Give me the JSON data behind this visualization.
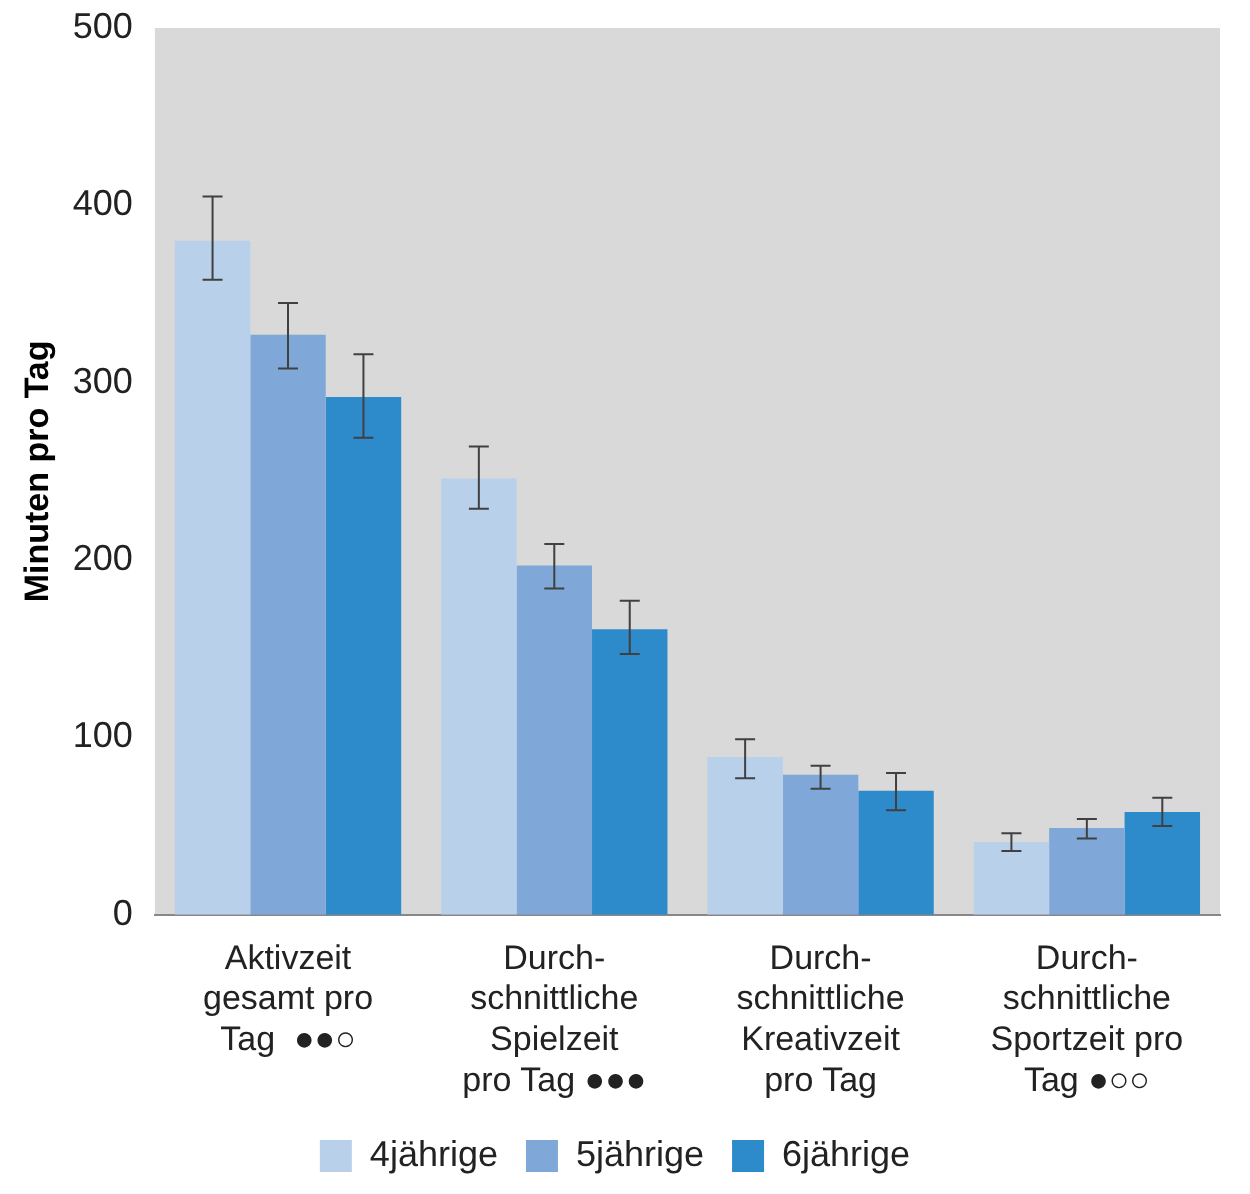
{
  "chart_data": {
    "type": "bar",
    "ylabel": "Minuten pro Tag",
    "categories": [
      "Aktivzeit\ngesamt pro\nTag  ●●○",
      "Durch-\nschnittliche\nSpielzeit\npro Tag ●●●",
      "Durch-\nschnittliche\nKreativzeit\npro Tag",
      "Durch-\nschnittliche\nSportzeit pro\nTag ●○○"
    ],
    "series": [
      {
        "name": "4jährige",
        "color": "#b8d0ea",
        "values": [
          380,
          246,
          89,
          41
        ],
        "errors": [
          [
            358,
            405
          ],
          [
            229,
            264
          ],
          [
            77,
            99
          ],
          [
            36,
            46
          ]
        ]
      },
      {
        "name": "5jährige",
        "color": "#7fa8d8",
        "values": [
          327,
          197,
          79,
          49
        ],
        "errors": [
          [
            308,
            345
          ],
          [
            184,
            209
          ],
          [
            71,
            84
          ],
          [
            43,
            54
          ]
        ]
      },
      {
        "name": "6jährige",
        "color": "#2e8bcb",
        "values": [
          292,
          161,
          70,
          58
        ],
        "errors": [
          [
            269,
            316
          ],
          [
            147,
            177
          ],
          [
            59,
            80
          ],
          [
            50,
            66
          ]
        ]
      }
    ],
    "ylim": [
      0,
      500
    ],
    "yticks": [
      0,
      100,
      200,
      300,
      400,
      500
    ],
    "grid": false,
    "legend": "bottom"
  }
}
